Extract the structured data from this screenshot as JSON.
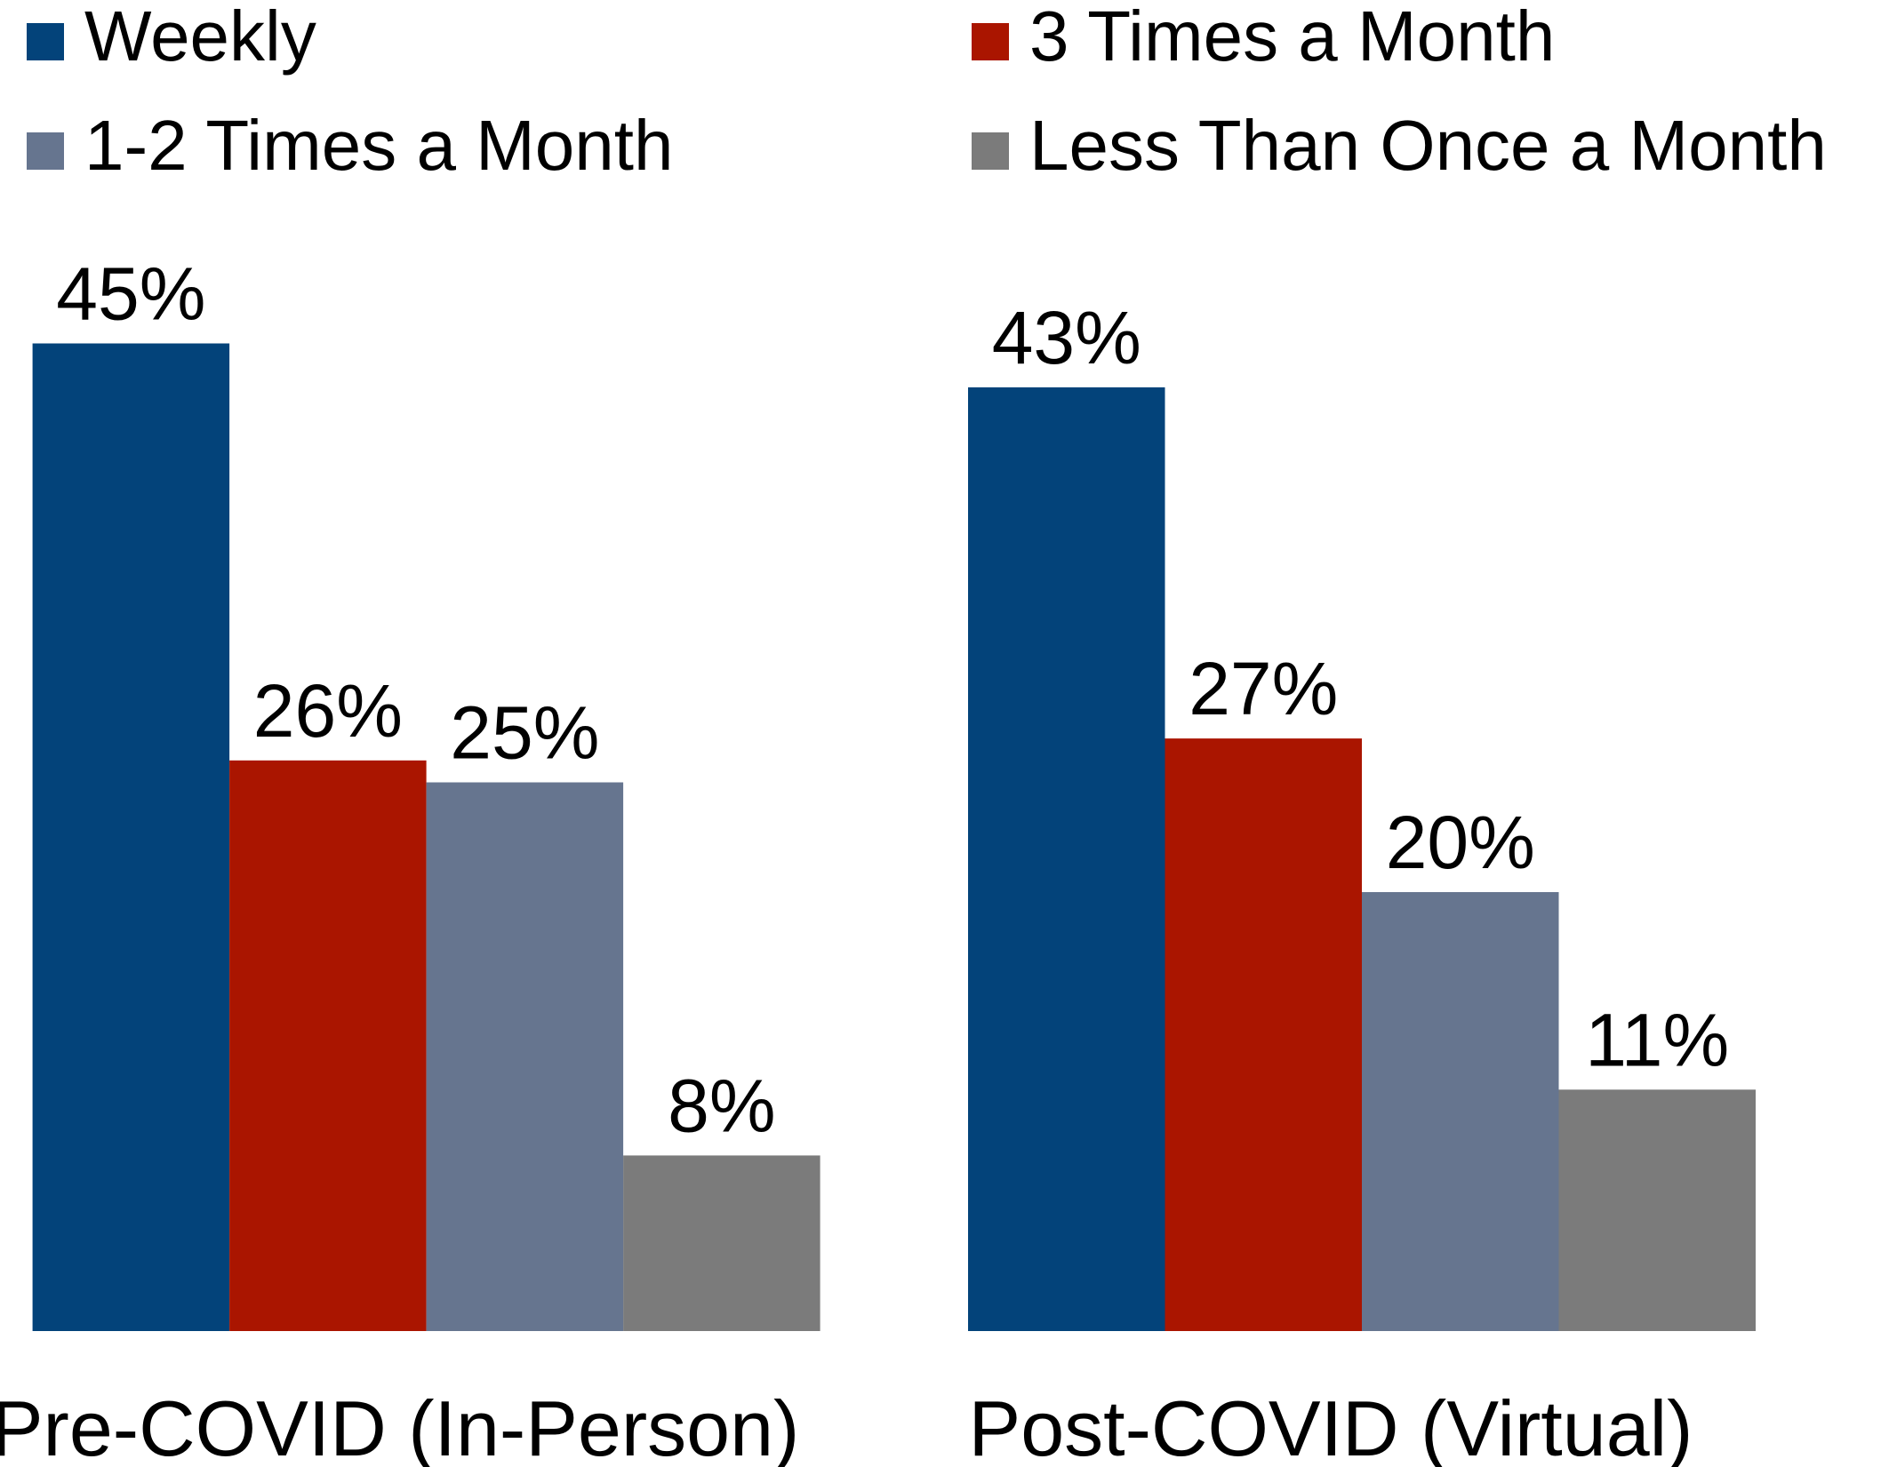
{
  "chart_data": {
    "type": "bar",
    "categories": [
      "Pre-COVID (In-Person)",
      "Post-COVID (Virtual)"
    ],
    "series": [
      {
        "name": "Weekly",
        "color": "#03437a",
        "values": [
          45,
          43
        ],
        "value_labels": [
          "45%",
          "43%"
        ]
      },
      {
        "name": "3 Times a Month",
        "color": "#aa1500",
        "values": [
          26,
          27
        ],
        "value_labels": [
          "26%",
          "27%"
        ]
      },
      {
        "name": "1-2 Times a Month",
        "color": "#66758f",
        "values": [
          25,
          20
        ],
        "value_labels": [
          "25%",
          "20%"
        ]
      },
      {
        "name": "Less Than Once a Month",
        "color": "#7b7b7b",
        "values": [
          8,
          11
        ],
        "value_labels": [
          "8%",
          "11%"
        ]
      }
    ],
    "legend": "top"
  }
}
